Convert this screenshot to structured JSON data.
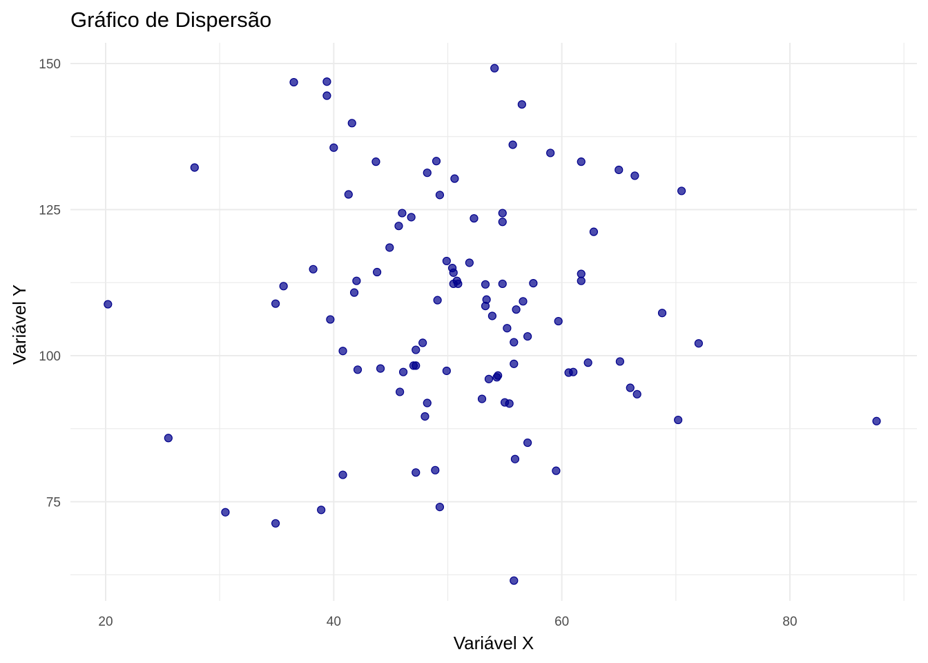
{
  "chart_data": {
    "type": "scatter",
    "title": "Gráfico de Dispersão",
    "xlabel": "Variável X",
    "ylabel": "Variável Y",
    "xlim": [
      17,
      91
    ],
    "ylim": [
      59,
      156
    ],
    "x_ticks": [
      20,
      40,
      60,
      80
    ],
    "y_ticks": [
      75,
      100,
      125,
      150
    ],
    "x_minor": [
      30,
      50,
      70,
      90
    ],
    "y_minor": [
      62.5,
      87.5,
      112.5,
      137.5
    ],
    "grid": true,
    "point_color": "#00008b",
    "point_opacity": 0.7,
    "points": [
      [
        54.1,
        149.2
      ],
      [
        39.4,
        146.9
      ],
      [
        36.5,
        146.8
      ],
      [
        39.4,
        144.5
      ],
      [
        56.5,
        143.0
      ],
      [
        41.6,
        139.8
      ],
      [
        40.0,
        135.6
      ],
      [
        55.7,
        136.1
      ],
      [
        59.0,
        134.7
      ],
      [
        43.7,
        133.2
      ],
      [
        49.0,
        133.3
      ],
      [
        61.7,
        133.2
      ],
      [
        27.8,
        132.2
      ],
      [
        65.0,
        131.8
      ],
      [
        48.2,
        131.3
      ],
      [
        66.4,
        130.8
      ],
      [
        50.6,
        130.3
      ],
      [
        70.5,
        128.2
      ],
      [
        41.3,
        127.6
      ],
      [
        49.3,
        127.5
      ],
      [
        46.0,
        124.4
      ],
      [
        54.8,
        124.4
      ],
      [
        46.8,
        123.7
      ],
      [
        52.3,
        123.5
      ],
      [
        54.8,
        122.9
      ],
      [
        45.7,
        122.2
      ],
      [
        62.8,
        121.2
      ],
      [
        44.9,
        118.5
      ],
      [
        49.9,
        116.2
      ],
      [
        51.9,
        115.9
      ],
      [
        50.4,
        115.0
      ],
      [
        38.2,
        114.8
      ],
      [
        43.8,
        114.3
      ],
      [
        50.5,
        114.2
      ],
      [
        61.7,
        114.0
      ],
      [
        42.0,
        112.8
      ],
      [
        50.8,
        112.8
      ],
      [
        61.7,
        112.8
      ],
      [
        57.5,
        112.4
      ],
      [
        50.5,
        112.3
      ],
      [
        50.9,
        112.3
      ],
      [
        53.3,
        112.2
      ],
      [
        54.8,
        112.3
      ],
      [
        35.6,
        111.9
      ],
      [
        41.8,
        110.8
      ],
      [
        53.4,
        109.6
      ],
      [
        49.1,
        109.5
      ],
      [
        56.6,
        109.3
      ],
      [
        34.9,
        108.9
      ],
      [
        20.2,
        108.8
      ],
      [
        53.3,
        108.5
      ],
      [
        56.0,
        107.9
      ],
      [
        68.8,
        107.3
      ],
      [
        53.9,
        106.8
      ],
      [
        39.7,
        106.2
      ],
      [
        59.7,
        105.9
      ],
      [
        55.2,
        104.7
      ],
      [
        57.0,
        103.3
      ],
      [
        55.8,
        102.3
      ],
      [
        47.8,
        102.2
      ],
      [
        72.0,
        102.1
      ],
      [
        47.2,
        101.0
      ],
      [
        40.8,
        100.8
      ],
      [
        65.1,
        99.0
      ],
      [
        62.3,
        98.8
      ],
      [
        55.8,
        98.6
      ],
      [
        47.0,
        98.3
      ],
      [
        47.2,
        98.3
      ],
      [
        42.1,
        97.6
      ],
      [
        44.1,
        97.8
      ],
      [
        49.9,
        97.4
      ],
      [
        46.1,
        97.2
      ],
      [
        61.0,
        97.2
      ],
      [
        60.6,
        97.1
      ],
      [
        54.4,
        96.6
      ],
      [
        54.3,
        96.3
      ],
      [
        53.6,
        96.0
      ],
      [
        66.0,
        94.5
      ],
      [
        66.6,
        93.4
      ],
      [
        45.8,
        93.8
      ],
      [
        53.0,
        92.6
      ],
      [
        55.0,
        92.0
      ],
      [
        48.2,
        91.9
      ],
      [
        55.4,
        91.8
      ],
      [
        48.0,
        89.6
      ],
      [
        70.2,
        89.0
      ],
      [
        87.6,
        88.8
      ],
      [
        25.5,
        85.9
      ],
      [
        57.0,
        85.1
      ],
      [
        55.9,
        82.3
      ],
      [
        48.9,
        80.4
      ],
      [
        59.5,
        80.3
      ],
      [
        47.2,
        80.0
      ],
      [
        40.8,
        79.6
      ],
      [
        49.3,
        74.1
      ],
      [
        38.9,
        73.6
      ],
      [
        30.5,
        73.2
      ],
      [
        34.9,
        71.3
      ],
      [
        55.8,
        61.5
      ]
    ]
  }
}
